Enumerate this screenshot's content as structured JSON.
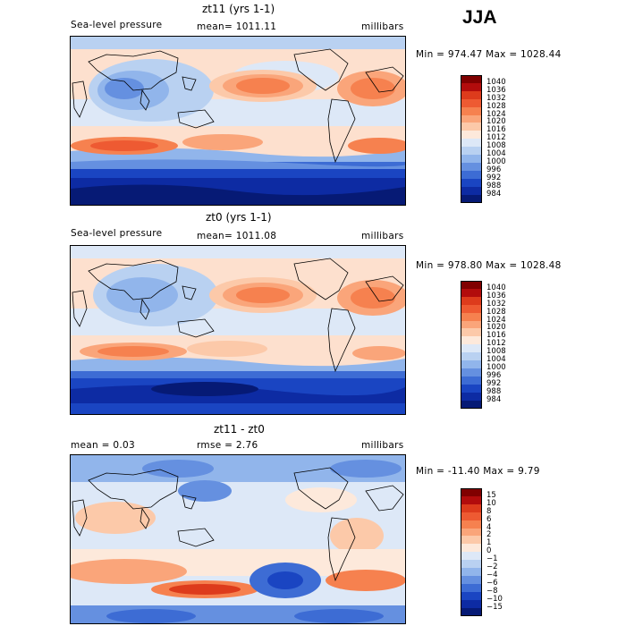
{
  "season": "JJA",
  "panels": [
    {
      "id": "p1",
      "title": "zt11 (yrs 1-1)",
      "left_label": "Sea-level pressure",
      "mid_label": "mean= 1011.11",
      "right_label": "millibars",
      "minmax": "Min = 974.47 Max = 1028.44",
      "levels": [
        "1040",
        "1036",
        "1032",
        "1028",
        "1024",
        "1020",
        "1016",
        "1012",
        "1008",
        "1004",
        "1000",
        "996",
        "992",
        "988",
        "984"
      ]
    },
    {
      "id": "p2",
      "title": "zt0 (yrs 1-1)",
      "left_label": "Sea-level pressure",
      "mid_label": "mean= 1011.08",
      "right_label": "millibars",
      "minmax": "Min = 978.80 Max = 1028.48",
      "levels": [
        "1040",
        "1036",
        "1032",
        "1028",
        "1024",
        "1020",
        "1016",
        "1012",
        "1008",
        "1004",
        "1000",
        "996",
        "992",
        "988",
        "984"
      ]
    },
    {
      "id": "p3",
      "title": "zt11 - zt0",
      "left_label": "mean =    0.03",
      "mid_label": "rmse =    2.76",
      "right_label": "millibars",
      "minmax": "Min = -11.40 Max =   9.79",
      "levels": [
        "15",
        "10",
        "8",
        "6",
        "4",
        "2",
        "1",
        "0",
        "−1",
        "−2",
        "−4",
        "−6",
        "−8",
        "−10",
        "−15"
      ]
    }
  ],
  "colors": {
    "scale": [
      "#800000",
      "#b20c0c",
      "#dd3b1c",
      "#ee5a32",
      "#f6814f",
      "#faa57a",
      "#fcc9a9",
      "#fde9db",
      "#dde8f7",
      "#b9d1f1",
      "#91b5eb",
      "#6590e0",
      "#3d6cd4",
      "#1a45c2",
      "#0d2ba3",
      "#061a75"
    ],
    "map_bg": "#fde0ce"
  },
  "chart_data": [
    {
      "type": "heatmap",
      "title": "zt11 (yrs 1-1)",
      "field": "Sea-level pressure",
      "units": "millibars",
      "mean": 1011.11,
      "min": 974.47,
      "max": 1028.44,
      "contour_levels": [
        984,
        988,
        992,
        996,
        1000,
        1004,
        1008,
        1012,
        1016,
        1020,
        1024,
        1028,
        1032,
        1036,
        1040
      ]
    },
    {
      "type": "heatmap",
      "title": "zt0 (yrs 1-1)",
      "field": "Sea-level pressure",
      "units": "millibars",
      "mean": 1011.08,
      "min": 978.8,
      "max": 1028.48,
      "contour_levels": [
        984,
        988,
        992,
        996,
        1000,
        1004,
        1008,
        1012,
        1016,
        1020,
        1024,
        1028,
        1032,
        1036,
        1040
      ]
    },
    {
      "type": "heatmap",
      "title": "zt11 - zt0",
      "units": "millibars",
      "mean": 0.03,
      "rmse": 2.76,
      "min": -11.4,
      "max": 9.79,
      "contour_levels": [
        -15,
        -10,
        -8,
        -6,
        -4,
        -2,
        -1,
        0,
        1,
        2,
        4,
        6,
        8,
        10,
        15
      ]
    }
  ]
}
